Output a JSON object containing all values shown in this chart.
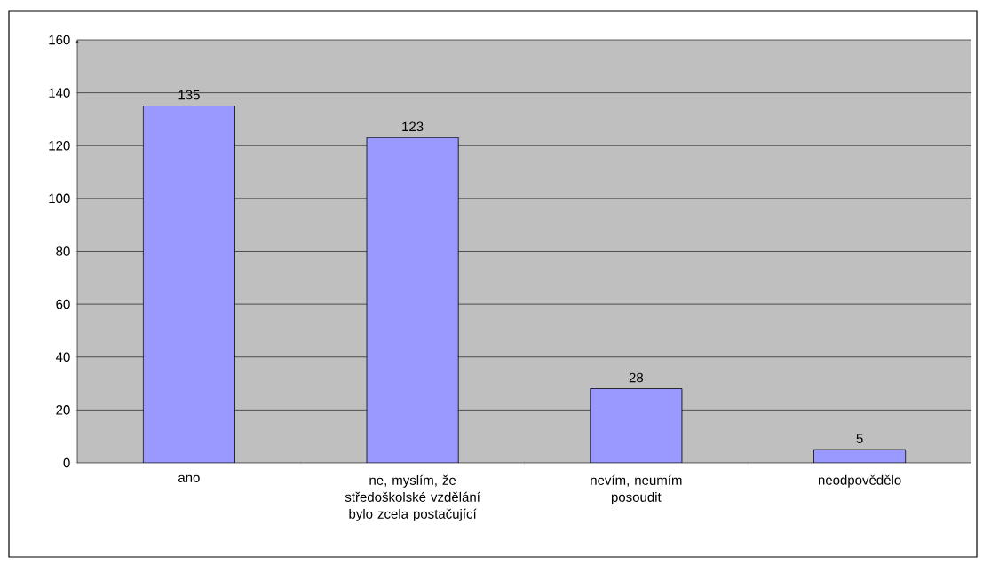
{
  "chart_data": {
    "type": "bar",
    "categories": [
      "ano",
      "ne, myslím, že středoškolské vzdělání bylo zcela postačující",
      "nevím, neumím posoudit",
      "neodpovědělo"
    ],
    "values": [
      135,
      123,
      28,
      5
    ],
    "color": "#9999ff",
    "ylim": [
      0,
      160
    ],
    "yticks": [
      0,
      20,
      40,
      60,
      80,
      100,
      120,
      140,
      160
    ],
    "grid": "y",
    "data_labels": true
  }
}
